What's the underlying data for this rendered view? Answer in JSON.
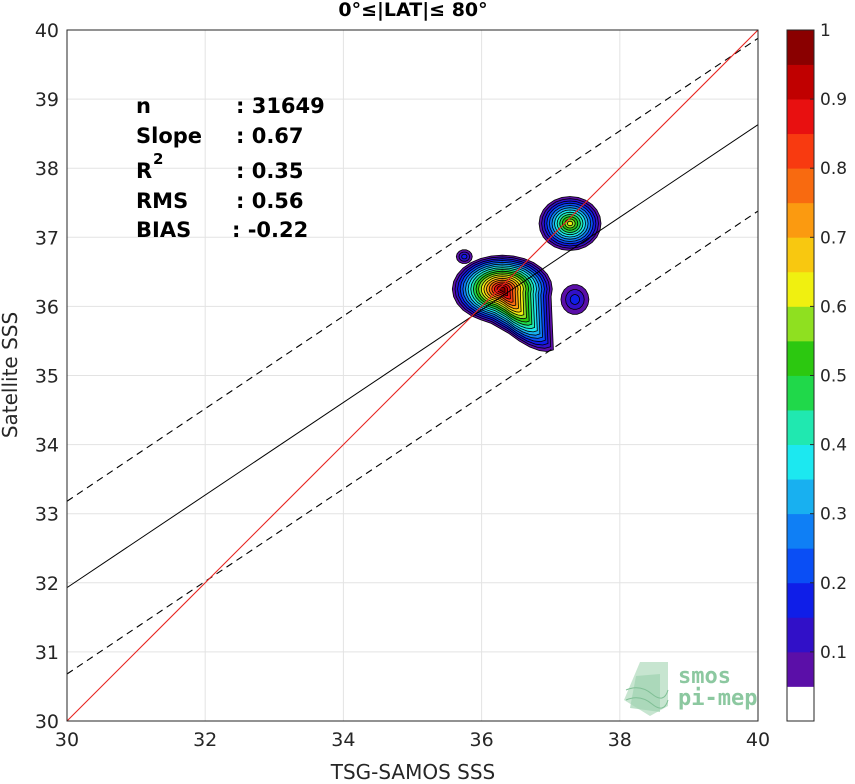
{
  "chart_data": {
    "type": "scatter",
    "title": "0°≤|LAT|≤ 80°",
    "xlabel": "TSG-SAMOS SSS",
    "ylabel": "Satellite SSS",
    "xlim": [
      30,
      40
    ],
    "ylim": [
      30,
      40
    ],
    "xticks": [
      "30",
      "32",
      "34",
      "36",
      "38",
      "40"
    ],
    "yticks": [
      "30",
      "31",
      "32",
      "33",
      "34",
      "35",
      "36",
      "37",
      "38",
      "39",
      "40"
    ],
    "grid": true,
    "stats": [
      {
        "label": "n",
        "value": ": 31649"
      },
      {
        "label": "Slope",
        "value": ": 0.67"
      },
      {
        "label": "R",
        "sup": "2",
        "value": ": 0.35"
      },
      {
        "label": "RMS",
        "value": ": 0.56"
      },
      {
        "label": "BIAS",
        "value": ": -0.22"
      }
    ],
    "regression": {
      "slope": 0.67,
      "intercept_at_30": 31.93,
      "rms_offset": 1.25
    },
    "identity_line_color": "#e8231f",
    "density_clusters": [
      {
        "x": 36.3,
        "y": 36.25,
        "peak": 1.0
      },
      {
        "x": 37.28,
        "y": 37.2,
        "peak": 0.65
      },
      {
        "x": 37.35,
        "y": 36.1,
        "peak": 0.15
      },
      {
        "x": 35.75,
        "y": 36.72,
        "peak": 0.15
      }
    ],
    "colorbar": {
      "range": [
        0,
        1
      ],
      "ticks": [
        "0.1",
        "0.2",
        "0.3",
        "0.4",
        "0.5",
        "0.6",
        "0.7",
        "0.8",
        "0.9",
        "1"
      ],
      "colors": [
        "#ffffff",
        "#5b0fa8",
        "#3110c8",
        "#0f1ee8",
        "#0a4ef5",
        "#0f7ff5",
        "#18b0f0",
        "#1ce8f0",
        "#20e8b0",
        "#20d84a",
        "#2cc810",
        "#8fe020",
        "#f0f010",
        "#f8c810",
        "#fb9a10",
        "#f86a10",
        "#f83a10",
        "#e81010",
        "#c00000",
        "#8a0000"
      ]
    }
  },
  "logo": {
    "line1": "smos",
    "line2": "pi-mep"
  }
}
